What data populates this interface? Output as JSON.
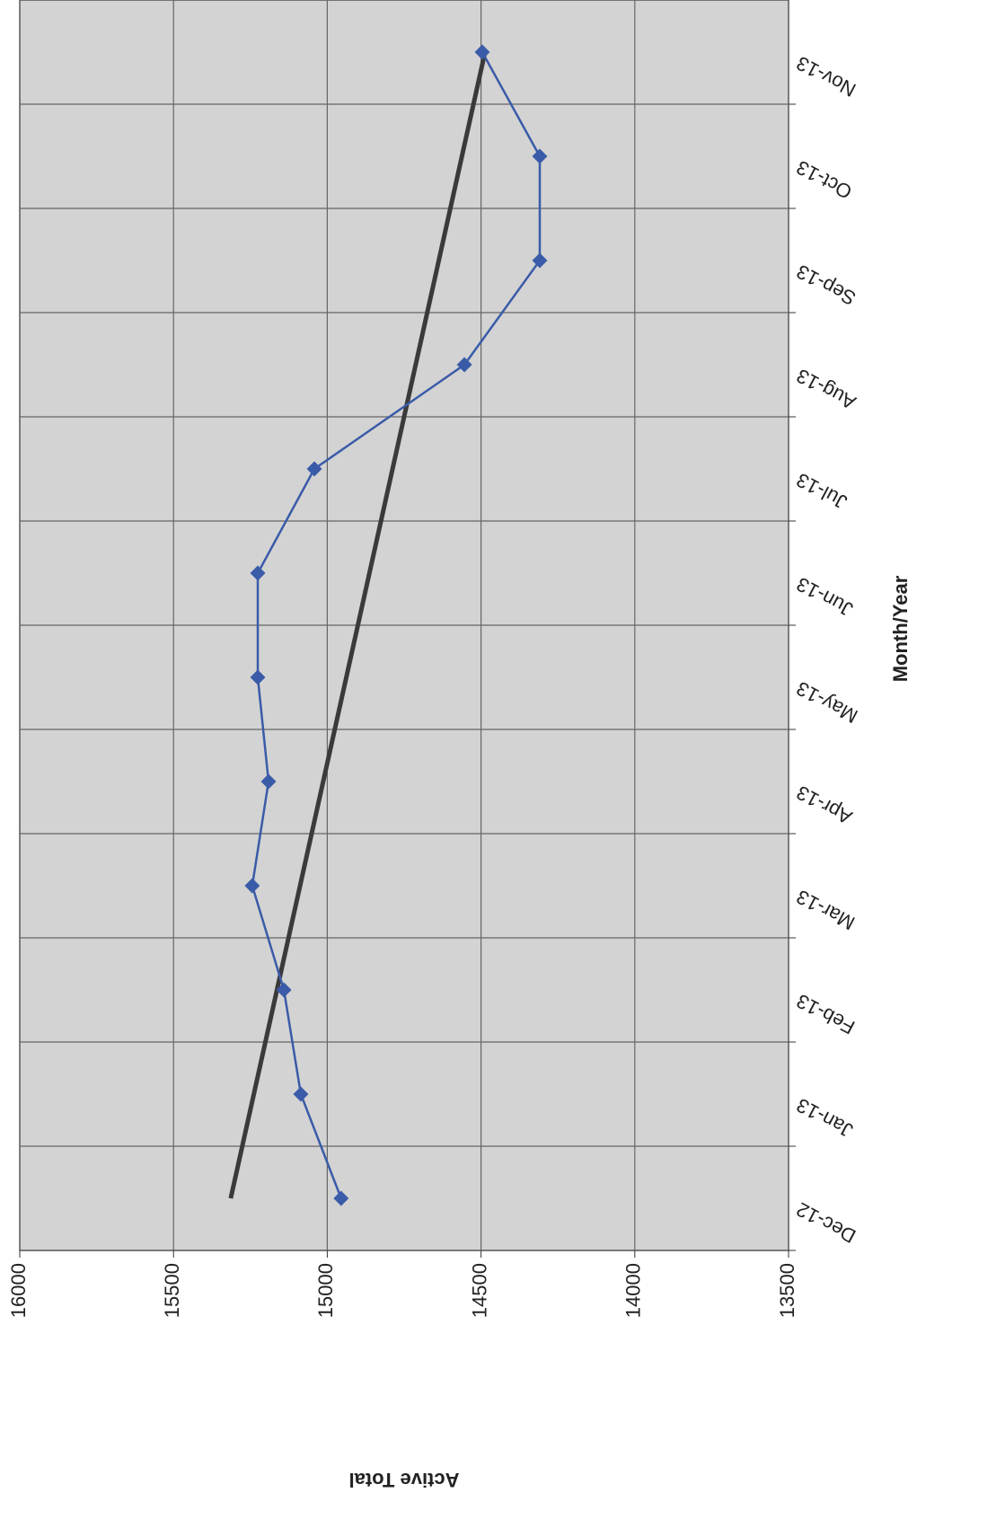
{
  "chart_data": {
    "type": "line",
    "x_label": "Month/Year",
    "y_label": "Active Total",
    "categories": [
      "Dec-12",
      "Jan-13",
      "Feb-13",
      "Mar-13",
      "Apr-13",
      "May-13",
      "Jun-13",
      "Jul-13",
      "Aug-13",
      "Sep-13",
      "Oct-13",
      "Nov-13"
    ],
    "series": [
      {
        "color": "#3a5ba8",
        "values": [
          14955,
          15086,
          15141,
          15244,
          15191,
          15226,
          15226,
          15042,
          14554,
          14309,
          14309,
          14496
        ]
      }
    ],
    "trendline": {
      "color": "#3a3a3a",
      "values": [
        15314,
        14487
      ]
    },
    "ylim": [
      13500,
      16000
    ],
    "yticks": [
      13500,
      14000,
      14500,
      15000,
      15500,
      16000
    ],
    "grid": true,
    "background": "#d3d3d3"
  }
}
